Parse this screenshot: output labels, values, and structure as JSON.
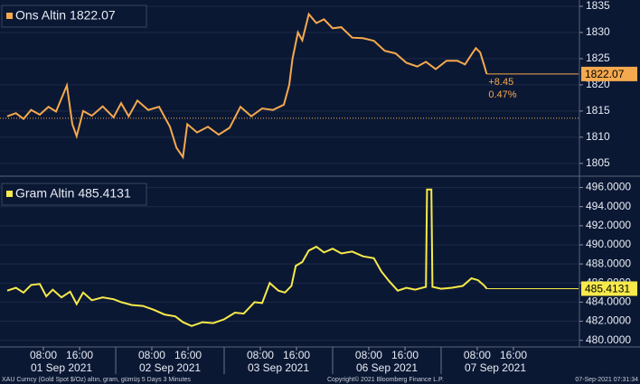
{
  "chart_data": [
    {
      "type": "line",
      "series": [
        {
          "name": "Ons Altin",
          "color": "#f5a94e",
          "x": [
            0.0,
            0.08,
            0.15,
            0.22,
            0.3,
            0.38,
            0.45,
            0.55,
            0.6,
            0.64,
            0.7,
            0.78,
            0.88,
            0.98,
            1.05,
            1.12,
            1.2,
            1.3,
            1.4,
            1.5,
            1.56,
            1.62,
            1.66,
            1.75,
            1.85,
            1.95,
            2.05,
            2.15,
            2.25,
            2.35,
            2.45,
            2.55,
            2.6,
            2.63,
            2.68,
            2.72,
            2.78,
            2.85,
            2.92,
            3.0,
            3.08,
            3.18,
            3.28,
            3.38,
            3.48,
            3.58,
            3.68,
            3.78,
            3.86,
            3.95,
            4.05,
            4.15,
            4.22,
            4.28,
            4.32,
            4.36,
            4.4,
            4.42
          ],
          "values": [
            1814.0,
            1814.6,
            1813.5,
            1815.2,
            1814.3,
            1815.8,
            1814.9,
            1819.9,
            1812.5,
            1810.2,
            1815.0,
            1814.1,
            1815.9,
            1813.8,
            1816.5,
            1814.0,
            1817.0,
            1815.2,
            1815.8,
            1812.0,
            1808.0,
            1806.2,
            1812.5,
            1810.9,
            1812.0,
            1810.5,
            1811.8,
            1815.8,
            1814.0,
            1815.5,
            1815.2,
            1816.2,
            1820.0,
            1825.0,
            1830.0,
            1828.5,
            1833.5,
            1831.8,
            1832.5,
            1830.8,
            1831.0,
            1829.0,
            1828.9,
            1828.4,
            1826.5,
            1826.0,
            1824.2,
            1823.5,
            1824.4,
            1823.0,
            1824.6,
            1824.6,
            1823.9,
            1825.8,
            1827.0,
            1826.2,
            1823.5,
            1822.07
          ]
        }
      ],
      "reference_line": 1813.62,
      "annotations": [
        "+8.45",
        "0.47%"
      ],
      "xlim": [
        -0.067,
        5.267
      ],
      "ylim": [
        1802.9,
        1836.2
      ],
      "yticks": [
        1805,
        1810,
        1815,
        1820,
        1825,
        1830,
        1835
      ]
    },
    {
      "type": "line",
      "series": [
        {
          "name": "Gram Altin",
          "color": "#f7ea4a",
          "x": [
            0.0,
            0.08,
            0.15,
            0.22,
            0.3,
            0.36,
            0.42,
            0.5,
            0.58,
            0.64,
            0.7,
            0.78,
            0.88,
            0.98,
            1.05,
            1.15,
            1.25,
            1.35,
            1.45,
            1.55,
            1.62,
            1.7,
            1.8,
            1.9,
            2.0,
            2.1,
            2.18,
            2.28,
            2.35,
            2.42,
            2.5,
            2.56,
            2.62,
            2.66,
            2.72,
            2.78,
            2.85,
            2.92,
            3.0,
            3.08,
            3.18,
            3.28,
            3.38,
            3.45,
            3.52,
            3.6,
            3.68,
            3.76,
            3.86,
            3.87,
            3.91,
            3.92,
            4.0,
            4.1,
            4.2,
            4.28,
            4.34,
            4.4,
            4.42
          ],
          "values": [
            485.2,
            485.5,
            485.0,
            485.8,
            485.9,
            484.6,
            485.3,
            484.5,
            485.1,
            483.8,
            485.0,
            484.2,
            484.5,
            484.3,
            484.0,
            483.7,
            483.6,
            483.2,
            482.7,
            482.5,
            481.9,
            481.5,
            481.9,
            481.8,
            482.2,
            482.9,
            482.8,
            484.0,
            483.9,
            486.0,
            485.2,
            485.0,
            485.7,
            487.8,
            488.2,
            489.4,
            489.8,
            489.2,
            489.6,
            489.1,
            489.3,
            488.8,
            488.6,
            487.2,
            486.2,
            485.2,
            485.5,
            485.3,
            485.6,
            495.8,
            495.8,
            485.6,
            485.4,
            485.5,
            485.7,
            486.5,
            486.3,
            485.7,
            485.4131
          ]
        }
      ],
      "xlim": [
        -0.067,
        5.267
      ],
      "ylim": [
        479.4,
        497
      ],
      "yticks": [
        {
          "value": 480,
          "label": "480.0000"
        },
        {
          "value": 482,
          "label": "482.0000"
        },
        {
          "value": 484,
          "label": "484.0000"
        },
        {
          "value": 486,
          "label": "486.0000"
        },
        {
          "value": 488,
          "label": "488.0000"
        },
        {
          "value": 490,
          "label": "490.0000"
        },
        {
          "value": 492,
          "label": "492.0000"
        },
        {
          "value": 494,
          "label": "494.0000"
        },
        {
          "value": 496,
          "label": "496.0000"
        }
      ],
      "xticks": [
        {
          "value": 0.333,
          "label": "08:00"
        },
        {
          "value": 0.667,
          "label": "16:00"
        },
        {
          "value": 1.333,
          "label": "08:00"
        },
        {
          "value": 1.667,
          "label": "16:00"
        },
        {
          "value": 2.333,
          "label": "08:00"
        },
        {
          "value": 2.667,
          "label": "16:00"
        },
        {
          "value": 3.333,
          "label": "08:00"
        },
        {
          "value": 3.667,
          "label": "16:00"
        },
        {
          "value": 4.333,
          "label": "08:00"
        },
        {
          "value": 4.667,
          "label": "16:00"
        }
      ],
      "xtick_dates": [
        {
          "value": 0.5,
          "label": "01 Sep 2021"
        },
        {
          "value": 1.5,
          "label": "02 Sep 2021"
        },
        {
          "value": 2.5,
          "label": "03 Sep 2021"
        },
        {
          "value": 3.5,
          "label": "06 Sep 2021"
        },
        {
          "value": 4.5,
          "label": "07 Sep 2021"
        }
      ]
    }
  ],
  "footer": {
    "left": "XAU Curncy (Gold Spot  $/Oz) altın, gram, gümüş 5 Days 3 Minutes",
    "center": "Copyright© 2021 Bloomberg Finance L.P.",
    "right": "07-Sep-2021 07:31:34"
  }
}
